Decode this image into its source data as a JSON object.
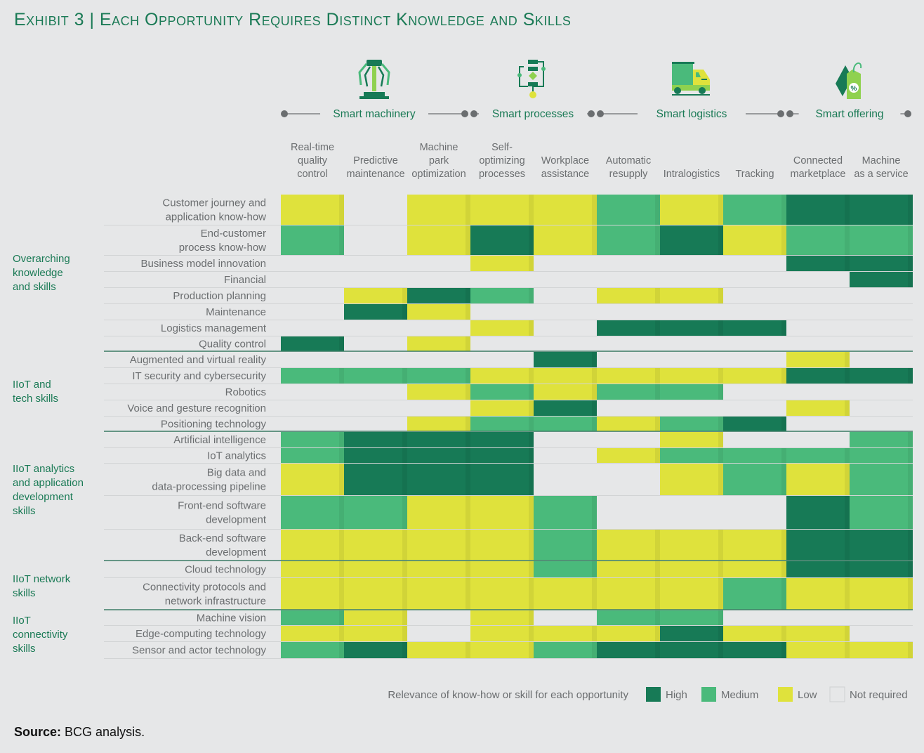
{
  "title": "Exhibit 3 | Each Opportunity Requires Distinct Knowledge and Skills",
  "source": {
    "label": "Source:",
    "text": " BCG analysis."
  },
  "chart_data": {
    "type": "heatmap",
    "title": "Exhibit 3 | Each Opportunity Requires Distinct Knowledge and Skills",
    "categories_groups": [
      {
        "name": "Smart machinery",
        "icon": "robot-arm-icon",
        "span": [
          0,
          2
        ]
      },
      {
        "name": "Smart processes",
        "icon": "process-flow-icon",
        "span": [
          3,
          4
        ]
      },
      {
        "name": "Smart logistics",
        "icon": "truck-icon",
        "span": [
          5,
          7
        ]
      },
      {
        "name": "Smart offering",
        "icon": "price-tag-icon",
        "span": [
          8,
          9
        ]
      }
    ],
    "columns": [
      [
        "Real-time",
        "quality",
        "control"
      ],
      [
        "Predictive",
        "maintenance"
      ],
      [
        "Machine",
        "park",
        "optimization"
      ],
      [
        "Self-",
        "optimizing",
        "processes"
      ],
      [
        "Workplace",
        "assistance"
      ],
      [
        "Automatic",
        "resupply"
      ],
      [
        "Intralogistics"
      ],
      [
        "Tracking"
      ],
      [
        "Connected",
        "marketplace"
      ],
      [
        "Machine",
        "as a service"
      ]
    ],
    "row_groups": [
      {
        "name": [
          "Overarching",
          "knowledge",
          "and skills"
        ],
        "rows": [
          0,
          7
        ]
      },
      {
        "name": [
          "IIoT and",
          "tech skills"
        ],
        "rows": [
          8,
          12
        ]
      },
      {
        "name": [
          "IIoT analytics",
          "and application",
          "development",
          "skills"
        ],
        "rows": [
          13,
          17
        ]
      },
      {
        "name": [
          "IIoT network",
          "skills"
        ],
        "rows": [
          18,
          19
        ]
      },
      {
        "name": [
          "IIoT",
          "connectivity",
          "skills"
        ],
        "rows": [
          20,
          22
        ]
      }
    ],
    "rows": [
      {
        "label": [
          "Customer journey and",
          "application know-how"
        ],
        "values": [
          "L",
          "N",
          "L",
          "L",
          "L",
          "M",
          "L",
          "M",
          "H",
          "H"
        ]
      },
      {
        "label": [
          "End-customer",
          "process know-how"
        ],
        "values": [
          "M",
          "N",
          "L",
          "H",
          "L",
          "M",
          "H",
          "L",
          "M",
          "M"
        ]
      },
      {
        "label": [
          "Business model innovation"
        ],
        "values": [
          "N",
          "N",
          "N",
          "L",
          "N",
          "N",
          "N",
          "N",
          "H",
          "H"
        ]
      },
      {
        "label": [
          "Financial"
        ],
        "values": [
          "N",
          "N",
          "N",
          "N",
          "N",
          "N",
          "N",
          "N",
          "N",
          "H"
        ]
      },
      {
        "label": [
          "Production planning"
        ],
        "values": [
          "N",
          "L",
          "H",
          "M",
          "N",
          "L",
          "L",
          "N",
          "N",
          "N"
        ]
      },
      {
        "label": [
          "Maintenance"
        ],
        "values": [
          "N",
          "H",
          "L",
          "N",
          "N",
          "N",
          "N",
          "N",
          "N",
          "N"
        ]
      },
      {
        "label": [
          "Logistics management"
        ],
        "values": [
          "N",
          "N",
          "N",
          "L",
          "N",
          "H",
          "H",
          "H",
          "N",
          "N"
        ]
      },
      {
        "label": [
          "Quality control"
        ],
        "values": [
          "H",
          "N",
          "L",
          "N",
          "N",
          "N",
          "N",
          "N",
          "N",
          "N"
        ]
      },
      {
        "label": [
          "Augmented and virtual reality"
        ],
        "values": [
          "N",
          "N",
          "N",
          "N",
          "H",
          "N",
          "N",
          "N",
          "L",
          "N"
        ]
      },
      {
        "label": [
          "IT security and cybersecurity"
        ],
        "values": [
          "M",
          "M",
          "M",
          "L",
          "L",
          "L",
          "L",
          "L",
          "H",
          "H"
        ]
      },
      {
        "label": [
          "Robotics"
        ],
        "values": [
          "N",
          "N",
          "L",
          "M",
          "L",
          "M",
          "M",
          "N",
          "N",
          "N"
        ]
      },
      {
        "label": [
          "Voice and gesture recognition"
        ],
        "values": [
          "N",
          "N",
          "N",
          "L",
          "H",
          "N",
          "N",
          "N",
          "L",
          "N"
        ]
      },
      {
        "label": [
          "Positioning technology"
        ],
        "values": [
          "N",
          "N",
          "L",
          "M",
          "M",
          "L",
          "M",
          "H",
          "N",
          "N"
        ]
      },
      {
        "label": [
          "Artificial intelligence"
        ],
        "values": [
          "M",
          "H",
          "H",
          "H",
          "N",
          "N",
          "L",
          "N",
          "N",
          "M"
        ]
      },
      {
        "label": [
          "IoT analytics"
        ],
        "values": [
          "M",
          "H",
          "H",
          "H",
          "N",
          "L",
          "M",
          "M",
          "M",
          "M"
        ]
      },
      {
        "label": [
          "Big data and",
          "data-processing pipeline"
        ],
        "values": [
          "L",
          "H",
          "H",
          "H",
          "N",
          "N",
          "L",
          "M",
          "L",
          "M"
        ]
      },
      {
        "label": [
          "Front-end software",
          "development"
        ],
        "values": [
          "M",
          "M",
          "L",
          "L",
          "M",
          "N",
          "N",
          "N",
          "H",
          "M"
        ]
      },
      {
        "label": [
          "Back-end software",
          "development"
        ],
        "values": [
          "L",
          "L",
          "L",
          "L",
          "M",
          "L",
          "L",
          "L",
          "H",
          "H"
        ]
      },
      {
        "label": [
          "Cloud technology"
        ],
        "values": [
          "L",
          "L",
          "L",
          "L",
          "M",
          "L",
          "L",
          "L",
          "H",
          "H"
        ]
      },
      {
        "label": [
          "Connectivity protocols and",
          "network infrastructure"
        ],
        "values": [
          "L",
          "L",
          "L",
          "L",
          "L",
          "L",
          "L",
          "M",
          "L",
          "L"
        ]
      },
      {
        "label": [
          "Machine vision"
        ],
        "values": [
          "M",
          "L",
          "N",
          "L",
          "N",
          "M",
          "M",
          "N",
          "N",
          "N"
        ]
      },
      {
        "label": [
          "Edge-computing technology"
        ],
        "values": [
          "L",
          "L",
          "N",
          "L",
          "L",
          "L",
          "H",
          "L",
          "L",
          "N"
        ]
      },
      {
        "label": [
          "Sensor and actor technology"
        ],
        "values": [
          "M",
          "H",
          "L",
          "L",
          "M",
          "H",
          "H",
          "H",
          "L",
          "L"
        ]
      }
    ],
    "scale": {
      "H": {
        "label": "High",
        "color": "#177a56"
      },
      "M": {
        "label": "Medium",
        "color": "#4aba7b"
      },
      "L": {
        "label": "Low",
        "color": "#dfe23c"
      },
      "N": {
        "label": "Not required",
        "color": "#e6e7e8"
      }
    },
    "legend": {
      "title": "Relevance of know-how or skill for each opportunity",
      "items": [
        "H",
        "M",
        "L",
        "N"
      ],
      "position": "bottom-right"
    }
  }
}
